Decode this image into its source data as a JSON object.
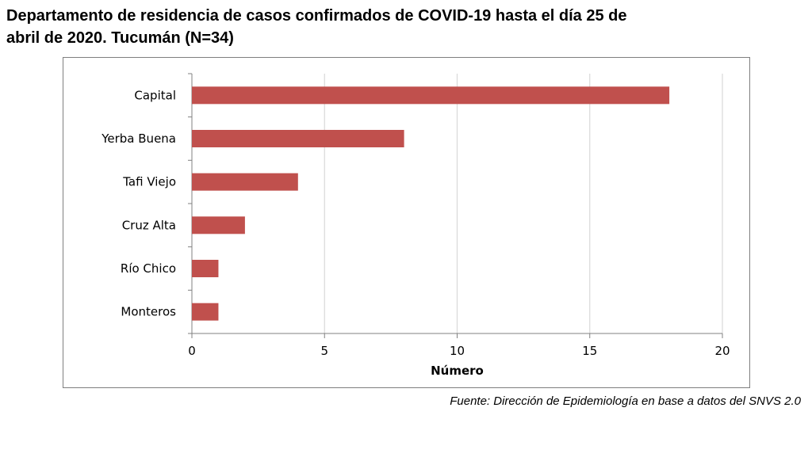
{
  "title_lines": [
    "Departamento de residencia de casos confirmados de COVID-19 hasta el día 25 de",
    "abril de 2020. Tucumán (N=34)"
  ],
  "source": "Fuente: Dirección de Epidemiología en base a datos del SNVS 2.0",
  "colors": {
    "bar": "#c0504d",
    "grid": "#d9d9d9",
    "axis": "#808080"
  },
  "chart_data": {
    "type": "bar",
    "orientation": "horizontal",
    "title": "Departamento de residencia de casos confirmados de COVID-19 hasta el día 25 de abril de 2020. Tucumán (N=34)",
    "categories": [
      "Capital",
      "Yerba Buena",
      "Tafi Viejo",
      "Cruz Alta",
      "Río Chico",
      "Monteros"
    ],
    "values": [
      18,
      8,
      4,
      2,
      1,
      1
    ],
    "xlabel": "Número",
    "ylabel": "",
    "xlim": [
      0,
      20
    ],
    "xticks": [
      0,
      5,
      10,
      15,
      20
    ],
    "grid": true,
    "legend": "none"
  }
}
